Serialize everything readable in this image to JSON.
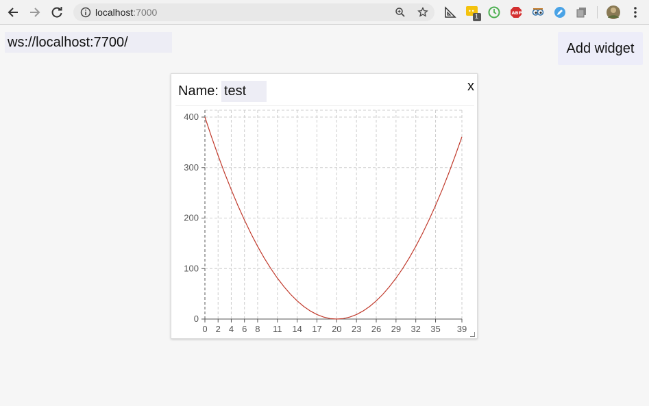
{
  "browser": {
    "url_host": "localhost",
    "url_port": ":7000",
    "extensions": [
      "ruler-icon",
      "mail-badge-icon",
      "clock-icon",
      "adblock-icon",
      "eyes-icon",
      "pen-icon",
      "copy-icon"
    ],
    "badge_count": "1"
  },
  "page": {
    "ws_url": "ws://localhost:7700/",
    "add_widget_label": "Add widget"
  },
  "widget": {
    "name_label": "Name:",
    "name_value": "test",
    "close_label": "x"
  },
  "colors": {
    "curve": "#c0392b",
    "grid": "#cccccc",
    "axis": "#555555"
  },
  "chart_data": {
    "type": "line",
    "series": [
      {
        "x": [
          0,
          1,
          2,
          3,
          4,
          5,
          6,
          7,
          8,
          9,
          10,
          11,
          12,
          13,
          14,
          15,
          16,
          17,
          18,
          19,
          20,
          21,
          22,
          23,
          24,
          25,
          26,
          27,
          28,
          29,
          30,
          31,
          32,
          33,
          34,
          35,
          36,
          37,
          38,
          39
        ],
        "y": [
          400,
          361,
          324,
          289,
          256,
          225,
          196,
          169,
          144,
          121,
          100,
          81,
          64,
          49,
          36,
          25,
          16,
          9,
          4,
          1,
          0,
          1,
          4,
          9,
          16,
          25,
          36,
          49,
          64,
          81,
          100,
          121,
          144,
          169,
          196,
          225,
          256,
          289,
          324,
          361
        ]
      }
    ],
    "xticks": [
      0,
      2,
      4,
      6,
      8,
      11,
      14,
      17,
      20,
      23,
      26,
      29,
      32,
      35,
      39
    ],
    "yticks": [
      0,
      100,
      200,
      300,
      400
    ],
    "xlim": [
      0,
      39
    ],
    "ylim": [
      0,
      400
    ],
    "grid": true
  }
}
